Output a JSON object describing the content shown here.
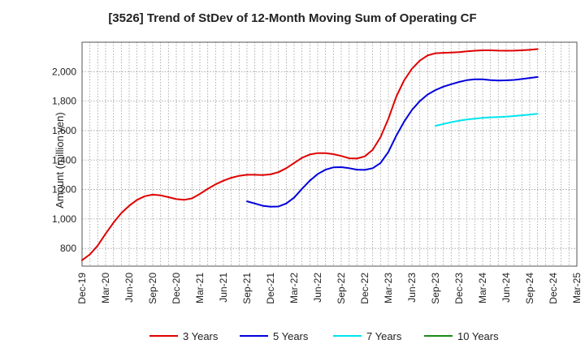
{
  "chart_data": {
    "type": "line",
    "title": "[3526]  Trend of StDev of 12-Month Moving Sum of Operating CF",
    "ylabel": "Amount (million yen)",
    "xlabel": "",
    "ylim": [
      680,
      2200
    ],
    "yticks": [
      800,
      1000,
      1200,
      1400,
      1600,
      1800,
      2000
    ],
    "ytick_labels": [
      "800",
      "1,000",
      "1,200",
      "1,400",
      "1,600",
      "1,800",
      "2,000"
    ],
    "xticks": [
      "Dec-19",
      "Mar-20",
      "Jun-20",
      "Sep-20",
      "Dec-20",
      "Mar-21",
      "Jun-21",
      "Sep-21",
      "Dec-21",
      "Mar-22",
      "Jun-22",
      "Sep-22",
      "Dec-22",
      "Mar-23",
      "Jun-23",
      "Sep-23",
      "Dec-23",
      "Mar-24",
      "Jun-24",
      "Sep-24",
      "Dec-24",
      "Mar-25"
    ],
    "grid": true,
    "legend_position": "bottom",
    "series": [
      {
        "name": "3 Years",
        "color": "#e00000",
        "start_index": 0,
        "values": [
          720,
          760,
          820,
          900,
          975,
          1040,
          1090,
          1130,
          1155,
          1165,
          1160,
          1148,
          1135,
          1130,
          1140,
          1170,
          1205,
          1235,
          1260,
          1280,
          1293,
          1300,
          1300,
          1298,
          1303,
          1318,
          1345,
          1380,
          1415,
          1438,
          1447,
          1447,
          1440,
          1428,
          1412,
          1410,
          1425,
          1470,
          1555,
          1680,
          1830,
          1940,
          2020,
          2075,
          2110,
          2125,
          2128,
          2130,
          2133,
          2138,
          2142,
          2145,
          2145,
          2143,
          2142,
          2143,
          2145,
          2148,
          2153
        ]
      },
      {
        "name": "5 Years",
        "color": "#0000dd",
        "start_index": 21,
        "values": [
          1120,
          1105,
          1090,
          1083,
          1085,
          1105,
          1145,
          1205,
          1260,
          1305,
          1335,
          1350,
          1352,
          1345,
          1335,
          1333,
          1345,
          1380,
          1455,
          1565,
          1660,
          1740,
          1800,
          1845,
          1875,
          1898,
          1915,
          1930,
          1942,
          1948,
          1948,
          1943,
          1940,
          1941,
          1944,
          1950,
          1957,
          1964
        ]
      },
      {
        "name": "7 Years",
        "color": "#00e5ee",
        "start_index": 45,
        "values": [
          1632,
          1645,
          1657,
          1667,
          1675,
          1681,
          1686,
          1690,
          1692,
          1695,
          1699,
          1704,
          1709,
          1714
        ]
      },
      {
        "name": "10 Years",
        "color": "#1a8a1a",
        "start_index": 0,
        "values": []
      }
    ]
  }
}
